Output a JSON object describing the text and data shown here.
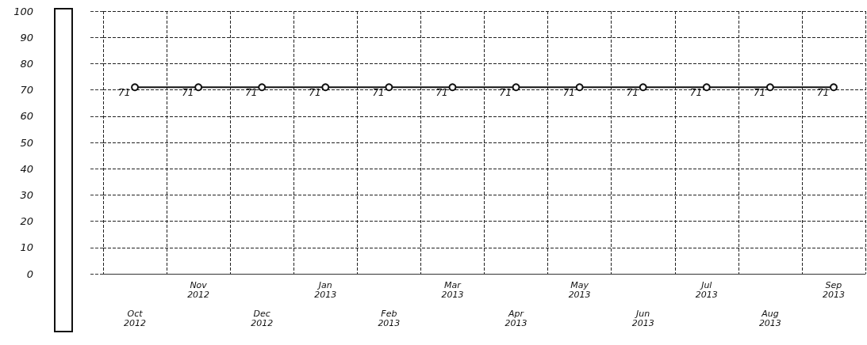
{
  "chart_data": {
    "type": "line",
    "categories": [
      "Oct 2012",
      "Nov 2012",
      "Dec 2012",
      "Jan 2013",
      "Feb 2013",
      "Mar 2013",
      "Apr 2013",
      "May 2013",
      "Jun 2013",
      "Jul 2013",
      "Aug 2013",
      "Sep 2013"
    ],
    "series": [
      {
        "color": "#111111",
        "values": [
          71,
          71,
          71,
          71,
          71,
          71,
          71,
          71,
          71,
          71,
          71,
          71
        ]
      }
    ],
    "ylim": [
      0,
      100
    ],
    "yticks": [
      0,
      10,
      20,
      30,
      40,
      50,
      60,
      70,
      80,
      90,
      100
    ],
    "grid": true,
    "marker": "circle",
    "line_style": "solid",
    "data_labels": true
  }
}
